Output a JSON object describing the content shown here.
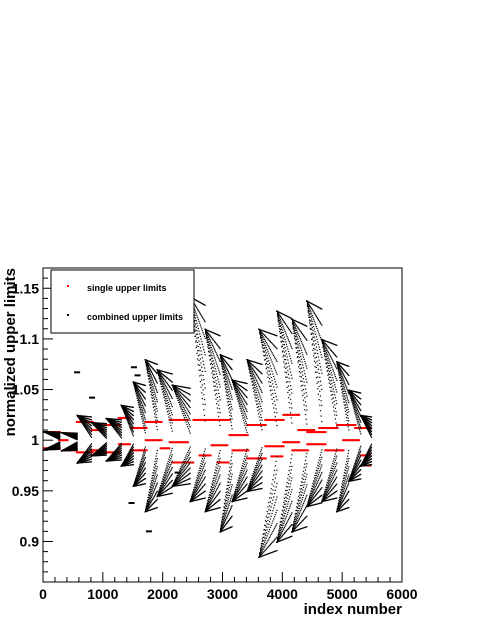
{
  "chart_data": {
    "type": "scatter",
    "title": "",
    "xlabel": "index number",
    "ylabel": "normalized upper limits",
    "xlim": [
      0,
      6000
    ],
    "ylim": [
      0.86,
      1.17
    ],
    "x_ticks": [
      "0",
      "1000",
      "2000",
      "3000",
      "4000",
      "5000",
      "6000"
    ],
    "y_ticks": [
      "0.9",
      "0.95",
      "1",
      "1.05",
      "1.1",
      "1.15"
    ],
    "y_tick_values": [
      0.9,
      0.95,
      1.0,
      1.05,
      1.1,
      1.15
    ],
    "grid": false,
    "legend_position": "top-left",
    "colors": {
      "single": "#ff0000",
      "combined": "#000000",
      "axis": "#000000"
    },
    "series": [
      {
        "name": "single upper limits",
        "marker": "dash",
        "segments": [
          [
            0,
            250,
            1.008
          ],
          [
            0,
            250,
            0.992
          ],
          [
            250,
            400,
            1.0
          ],
          [
            400,
            550,
            0.99
          ],
          [
            550,
            800,
            1.018
          ],
          [
            550,
            800,
            0.988
          ],
          [
            800,
            1000,
            1.01
          ],
          [
            800,
            1000,
            0.99
          ],
          [
            1000,
            1250,
            1.015
          ],
          [
            1000,
            1250,
            0.988
          ],
          [
            1250,
            1450,
            1.022
          ],
          [
            1250,
            1450,
            0.996
          ],
          [
            1450,
            1700,
            1.012
          ],
          [
            1450,
            1700,
            0.99
          ],
          [
            1700,
            1950,
            1.018
          ],
          [
            1700,
            1950,
            1.0
          ],
          [
            1950,
            2100,
            0.992
          ],
          [
            2100,
            2400,
            1.02
          ],
          [
            2100,
            2400,
            0.998
          ],
          [
            2150,
            2500,
            0.978
          ],
          [
            2500,
            2800,
            1.02
          ],
          [
            2600,
            2800,
            0.985
          ],
          [
            2800,
            3100,
            1.02
          ],
          [
            2800,
            3050,
            0.995
          ],
          [
            2900,
            3100,
            0.978
          ],
          [
            3100,
            3400,
            1.005
          ],
          [
            3150,
            3400,
            0.99
          ],
          [
            3400,
            3700,
            1.015
          ],
          [
            3400,
            3700,
            0.982
          ],
          [
            3700,
            4000,
            1.02
          ],
          [
            3700,
            4000,
            0.994
          ],
          [
            3800,
            4000,
            0.984
          ],
          [
            4000,
            4250,
            1.025
          ],
          [
            4000,
            4250,
            0.998
          ],
          [
            4150,
            4400,
            0.99
          ],
          [
            4250,
            4500,
            1.01
          ],
          [
            4400,
            4700,
            1.008
          ],
          [
            4400,
            4700,
            0.996
          ],
          [
            4600,
            4900,
            1.012
          ],
          [
            4700,
            5000,
            0.99
          ],
          [
            4900,
            5200,
            1.015
          ],
          [
            5000,
            5250,
            1.0
          ],
          [
            5200,
            5450,
            1.012
          ],
          [
            5300,
            5450,
            0.985
          ],
          [
            5350,
            5450,
            0.975
          ]
        ]
      },
      {
        "name": "combined upper limits",
        "marker": "dot",
        "fans": [
          [
            0,
            270,
            1.009,
            1.0
          ],
          [
            0,
            270,
            0.991,
            1.0
          ],
          [
            300,
            560,
            1.008,
            1.0
          ],
          [
            300,
            560,
            0.99,
            1.0
          ],
          [
            560,
            800,
            1.025,
            1.0
          ],
          [
            560,
            800,
            0.978,
            1.0
          ],
          [
            800,
            1050,
            1.018,
            1.0
          ],
          [
            800,
            1050,
            0.985,
            1.0
          ],
          [
            1050,
            1300,
            1.022,
            1.0
          ],
          [
            1050,
            1300,
            0.98,
            1.0
          ],
          [
            1300,
            1500,
            1.035,
            1.0
          ],
          [
            1300,
            1500,
            0.975,
            1.0
          ],
          [
            1500,
            1700,
            1.058,
            1.0
          ],
          [
            1500,
            1700,
            0.955,
            1.0
          ],
          [
            1700,
            1900,
            1.08,
            1.0
          ],
          [
            1700,
            1900,
            0.93,
            1.0
          ],
          [
            1900,
            2150,
            1.07,
            1.0
          ],
          [
            1900,
            2150,
            0.945,
            1.0
          ],
          [
            2150,
            2450,
            1.055,
            1.0
          ],
          [
            2150,
            2450,
            0.955,
            1.0
          ],
          [
            2450,
            2700,
            1.142,
            1.0
          ],
          [
            2450,
            2700,
            0.94,
            1.0
          ],
          [
            2700,
            2950,
            1.11,
            1.0
          ],
          [
            2700,
            2950,
            0.93,
            1.0
          ],
          [
            2950,
            3150,
            1.085,
            1.0
          ],
          [
            2950,
            3150,
            0.91,
            1.0
          ],
          [
            3150,
            3400,
            1.06,
            1.0
          ],
          [
            3150,
            3400,
            0.94,
            1.0
          ],
          [
            3400,
            3650,
            1.08,
            1.0
          ],
          [
            3400,
            3650,
            0.95,
            1.0
          ],
          [
            3600,
            3900,
            1.11,
            1.0
          ],
          [
            3600,
            3900,
            0.885,
            1.0
          ],
          [
            3900,
            4150,
            1.128,
            1.0
          ],
          [
            3900,
            4150,
            0.9,
            1.0
          ],
          [
            4150,
            4400,
            1.12,
            1.0
          ],
          [
            4150,
            4400,
            0.91,
            1.0
          ],
          [
            4400,
            4650,
            1.138,
            1.0
          ],
          [
            4400,
            4650,
            0.935,
            1.0
          ],
          [
            4650,
            4900,
            1.1,
            1.0
          ],
          [
            4650,
            4900,
            0.94,
            1.0
          ],
          [
            4900,
            5100,
            1.078,
            1.0
          ],
          [
            4900,
            5100,
            0.93,
            1.0
          ],
          [
            5100,
            5300,
            1.05,
            1.0
          ],
          [
            5100,
            5300,
            0.96,
            1.0
          ],
          [
            5300,
            5480,
            1.025,
            1.0
          ],
          [
            5300,
            5480,
            0.975,
            1.0
          ]
        ],
        "isolated_points": [
          [
            570,
            1.067
          ],
          [
            820,
            1.042
          ],
          [
            1480,
            0.938
          ],
          [
            1580,
            1.064
          ],
          [
            1770,
            0.91
          ],
          [
            1520,
            1.072
          ],
          [
            2250,
            0.968
          ]
        ]
      }
    ]
  },
  "legend": {
    "items": [
      {
        "label": "single upper limits",
        "color": "#ff0000"
      },
      {
        "label": "combined upper limits",
        "color": "#000000"
      }
    ]
  }
}
